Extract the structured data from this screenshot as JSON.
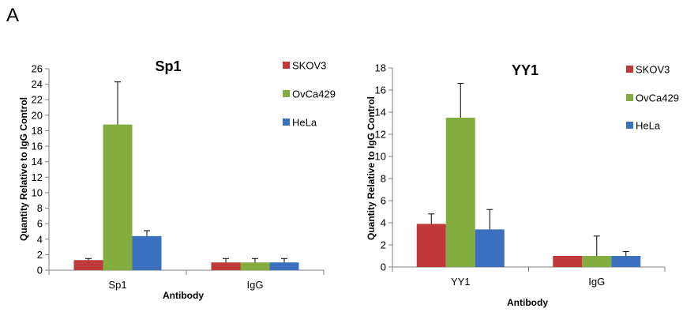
{
  "figure": {
    "panel_label": "A"
  },
  "chart_data": [
    {
      "type": "bar",
      "title": "Sp1",
      "xlabel": "Antibody",
      "ylabel": "Quantity Relative to IgG Control",
      "ylim": [
        0,
        26
      ],
      "yticks": [
        0,
        2,
        4,
        6,
        8,
        10,
        12,
        14,
        16,
        18,
        20,
        22,
        24,
        26
      ],
      "categories": [
        "Sp1",
        "IgG"
      ],
      "legend_position": "right",
      "series": [
        {
          "name": "SKOV3",
          "color": "#c0393a",
          "values": [
            1.3,
            1.0
          ],
          "errors": [
            0.2,
            0.5
          ]
        },
        {
          "name": "OvCa429",
          "color": "#83ad3e",
          "values": [
            18.8,
            1.0
          ],
          "errors": [
            5.5,
            0.5
          ]
        },
        {
          "name": "HeLa",
          "color": "#3b70be",
          "values": [
            4.4,
            1.0
          ],
          "errors": [
            0.7,
            0.5
          ]
        }
      ]
    },
    {
      "type": "bar",
      "title": "YY1",
      "xlabel": "Antibody",
      "ylabel": "Quantity Relative to IgG Control",
      "ylim": [
        0,
        18
      ],
      "yticks": [
        0,
        2,
        4,
        6,
        8,
        10,
        12,
        14,
        16,
        18
      ],
      "categories": [
        "YY1",
        "IgG"
      ],
      "legend_position": "right",
      "series": [
        {
          "name": "SKOV3",
          "color": "#c0393a",
          "values": [
            3.9,
            1.0
          ],
          "errors": [
            0.9,
            0.0
          ]
        },
        {
          "name": "OvCa429",
          "color": "#83ad3e",
          "values": [
            13.5,
            1.0
          ],
          "errors": [
            3.1,
            1.8
          ]
        },
        {
          "name": "HeLa",
          "color": "#3b70be",
          "values": [
            3.4,
            1.0
          ],
          "errors": [
            1.8,
            0.4
          ]
        }
      ]
    }
  ]
}
